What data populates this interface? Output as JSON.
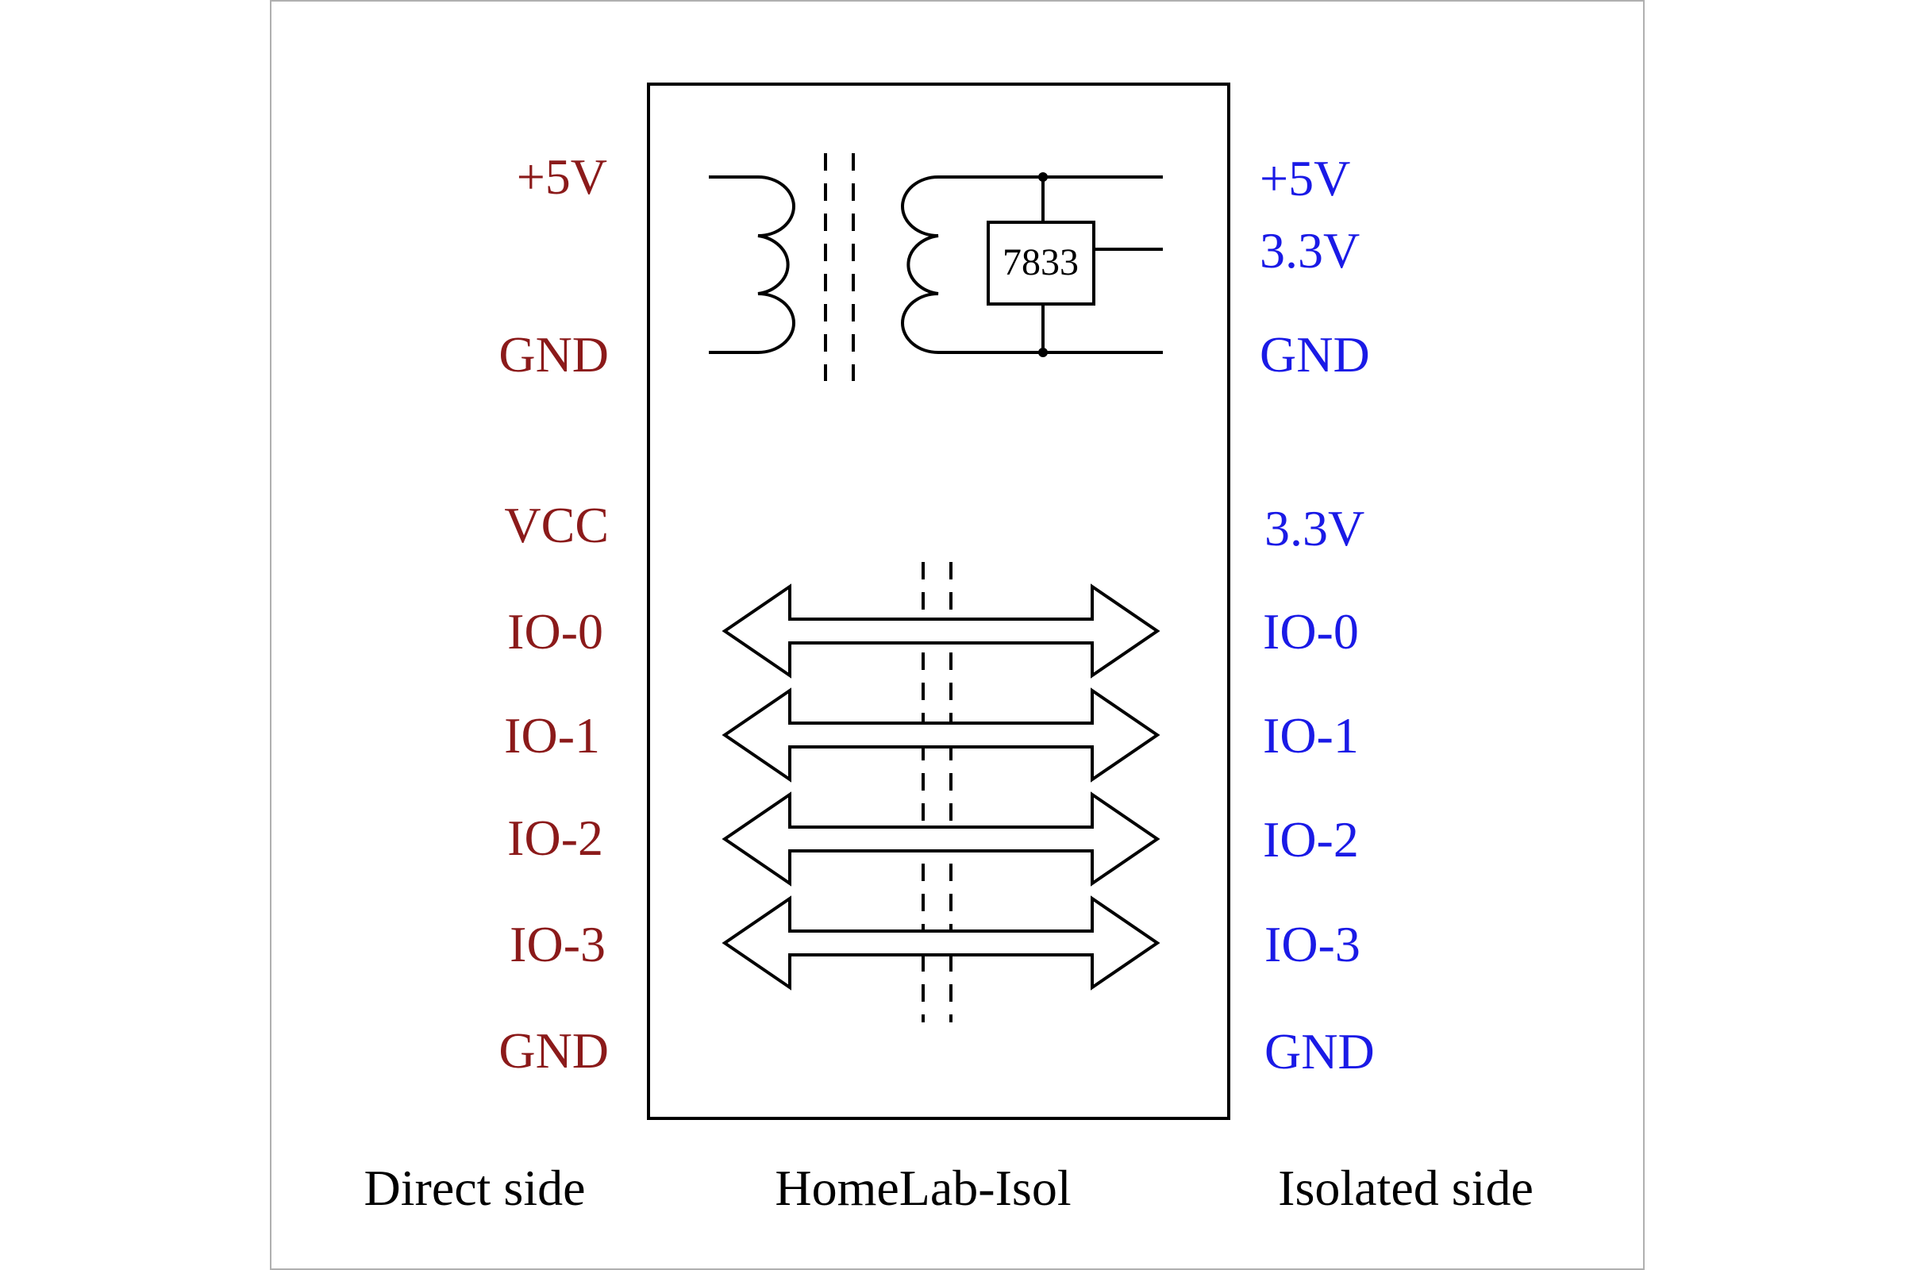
{
  "colors": {
    "direct": "#8b1a1a",
    "isolated": "#1a1ae6",
    "ink": "#000000",
    "frame": "#b0b0b0",
    "background": "#ffffff"
  },
  "direct_side": {
    "title": "Direct side",
    "pins": {
      "v5": "+5V",
      "gnd_power": "GND",
      "vcc": "VCC",
      "io0": "IO-0",
      "io1": "IO-1",
      "io2": "IO-2",
      "io3": "IO-3",
      "gnd_io": "GND"
    }
  },
  "isolated_side": {
    "title": "Isolated side",
    "pins": {
      "v5": "+5V",
      "v33_power": "3.3V",
      "gnd_power": "GND",
      "v33_io": "3.3V",
      "io0": "IO-0",
      "io1": "IO-1",
      "io2": "IO-2",
      "io3": "IO-3",
      "gnd_io": "GND"
    }
  },
  "module": {
    "title": "HomeLab-Isol",
    "regulator_label": "7833"
  },
  "icons": {
    "transformer": "transformer-icon",
    "regulator": "voltage-regulator-icon",
    "isolation_barrier": "isolation-barrier-icon",
    "bidirectional_arrow": "bidirectional-arrow-icon"
  }
}
